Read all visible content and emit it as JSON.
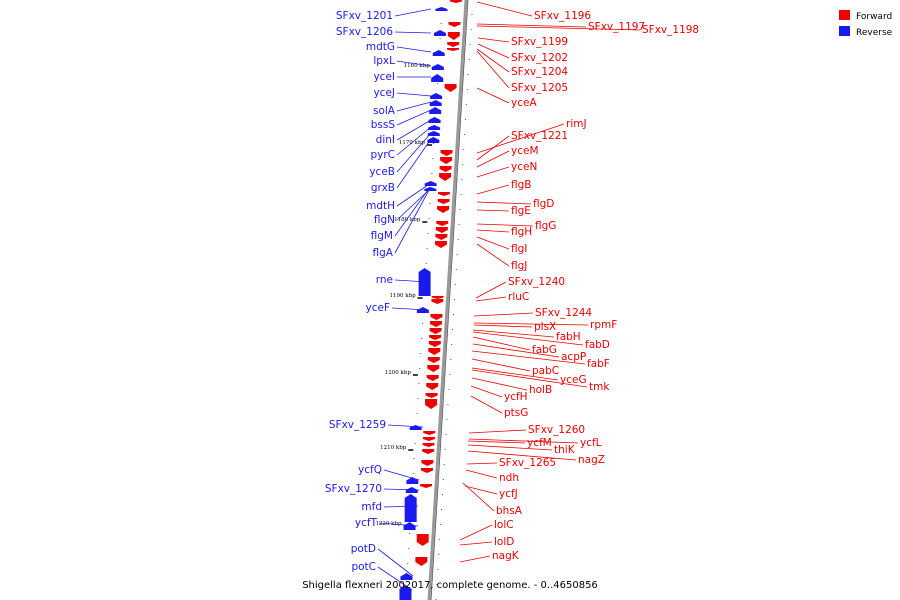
{
  "caption": "Shigella flexneri 2002017, complete genome. - 0..4650856",
  "legend": [
    {
      "label": "Forward",
      "color": "#ee0000"
    },
    {
      "label": "Reverse",
      "color": "#1a1aee"
    }
  ],
  "colors": {
    "forward": "#ee0000",
    "reverse": "#1a1aee",
    "axis": "#999999"
  },
  "ticks": [
    "1160 kbp",
    "1170 kbp",
    "1180 kbp",
    "1190 kbp",
    "1200 kbp",
    "1210 kbp",
    "1220 kbp"
  ],
  "forward_labels": [
    "SFxv_1196",
    "SFxv_1197",
    "SFxv_1198",
    "SFxv_1199",
    "SFxv_1202",
    "SFxv_1204",
    "SFxv_1205",
    "yceA",
    "rimJ",
    "SFxv_1221",
    "yceM",
    "yceN",
    "flgB",
    "flgD",
    "flgE",
    "flgG",
    "flgH",
    "flgI",
    "flgJ",
    "SFxv_1240",
    "rluC",
    "SFxv_1244",
    "rpmF",
    "plsX",
    "fabH",
    "fabD",
    "fabG",
    "acpP",
    "fabF",
    "pabC",
    "yceG",
    "tmk",
    "holB",
    "ycfH",
    "ptsG",
    "SFxv_1260",
    "ycfL",
    "ycfM",
    "thiK",
    "nagZ",
    "SFxv_1265",
    "ndh",
    "ycfJ",
    "bhsA",
    "lolC",
    "lolD",
    "nagK"
  ],
  "reverse_labels": [
    "SFxv_1201",
    "SFxv_1206",
    "mdtG",
    "lpxL",
    "yceI",
    "yceJ",
    "solA",
    "bssS",
    "dinI",
    "pyrC",
    "yceB",
    "grxB",
    "mdtH",
    "flgN",
    "flgM",
    "flgA",
    "rne",
    "yceF",
    "SFxv_1259",
    "ycfQ",
    "SFxv_1270",
    "mfd",
    "ycfT",
    "potD",
    "potC"
  ]
}
